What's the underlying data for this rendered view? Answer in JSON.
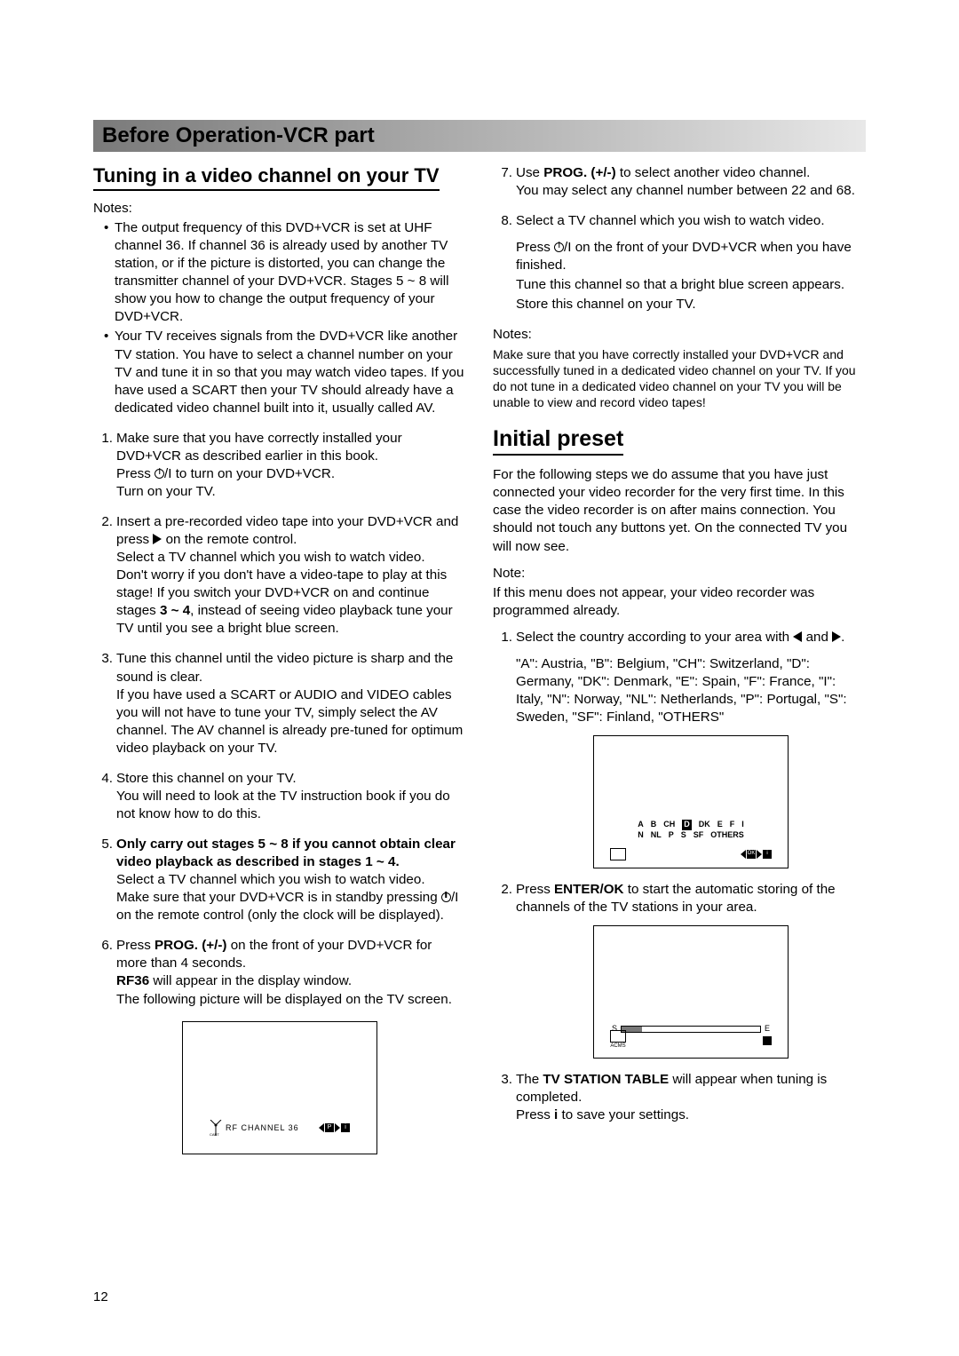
{
  "section_title": "Before Operation-VCR part",
  "heading_tuning": "Tuning in a video channel on your TV",
  "notes_label": "Notes:",
  "note_label": "Note:",
  "bullet1": "The output frequency of this DVD+VCR is set at UHF channel 36. If channel 36 is already used by another TV station, or if the picture is distorted, you can change the transmitter channel of your DVD+VCR. Stages 5 ~ 8 will show you how to change the output frequency of your DVD+VCR.",
  "bullet2": "Your TV receives signals from the DVD+VCR like another TV station. You have to select a channel number on your TV and tune it in so that you may watch video tapes. If you have used a SCART then your TV should already have a dedicated video channel built into it, usually called AV.",
  "step1a": "Make sure that you have correctly installed your DVD+VCR as described earlier in this book.",
  "step1b_pre": "Press ",
  "step1b_post": "/I to turn on your DVD+VCR.",
  "step1c": "Turn on your TV.",
  "step2a_pre": "Insert a pre-recorded video tape into your DVD+VCR and press ",
  "step2a_post": " on the remote control.",
  "step2b": "Select a TV channel which you wish to watch video.",
  "step2c_pre": "Don't worry if you don't have a video-tape to play at this stage! If you switch your DVD+VCR on and continue stages ",
  "step2c_bold": "3 ~ 4",
  "step2c_post": ", instead of seeing video playback tune your TV until you see a bright blue screen.",
  "step3a": "Tune this channel until the video picture is sharp and the sound is clear.",
  "step3b": "If you have used a SCART or AUDIO and VIDEO cables you will not have to tune your TV, simply select the AV channel. The AV channel is already pre-tuned for optimum video playback on your TV.",
  "step4a": "Store this channel on your TV.",
  "step4b": "You will need to look at the TV instruction book if you do not know how to do this.",
  "step5_bold": "Only carry out stages 5 ~ 8 if you cannot obtain clear video playback as described in stages 1 ~ 4.",
  "step5a": "Select a TV channel which you wish to watch video.",
  "step5b_pre": "Make sure that your DVD+VCR is in standby pressing ",
  "step5b_post": "/I on the remote control (only the clock will be displayed).",
  "step6a_pre": "Press ",
  "step6a_bold": "PROG. (+/-)",
  "step6a_post": " on the front of your DVD+VCR for more than 4 seconds.",
  "step6b_bold": "RF36",
  "step6b_post": " will appear in the display window.",
  "step6c": "The following picture will be displayed on the TV screen.",
  "step7a_pre": "Use ",
  "step7a_bold": "PROG. (+/-)",
  "step7a_post": " to select another video channel.",
  "step7b": "You may select any channel number between 22 and 68.",
  "step8a": "Select a TV channel which you wish to watch video.",
  "step8b_pre": "Press ",
  "step8b_post": "/I on the front of your DVD+VCR when you have finished.",
  "step8c": "Tune this channel so that a bright blue screen appears.",
  "step8d": "Store this channel on your TV.",
  "right_notes_body": "Make sure that you have correctly installed your DVD+VCR and successfully tuned in a dedicated video channel on your TV. If you do not tune in a dedicated video channel on your TV you will be unable to view and record video tapes!",
  "heading_initial": "Initial preset",
  "initial_intro": "For the following steps we do assume that you have just connected your video recorder for the very first time. In this case the video recorder is on after mains connection. You should not touch any buttons yet. On the connected TV you will now see.",
  "initial_note": "If this menu does not appear, your video recorder was programmed already.",
  "istep1a_pre": "Select the country according to your area with ",
  "istep1a_mid": " and ",
  "istep1a_post": ".",
  "istep1b": "\"A\": Austria, \"B\": Belgium, \"CH\": Switzerland, \"D\": Germany, \"DK\": Denmark, \"E\": Spain, \"F\": France, \"I\": Italy, \"N\": Norway, \"NL\": Netherlands, \"P\": Portugal, \"S\": Sweden, \"SF\": Finland, \"OTHERS\"",
  "istep2_pre": "Press ",
  "istep2_bold": "ENTER/OK",
  "istep2_post": " to start the automatic storing of the channels of the TV stations in your area.",
  "istep3_pre": "The ",
  "istep3_bold": "TV STATION TABLE",
  "istep3_post": " will appear when tuning is completed.",
  "istep3b_pre": "Press ",
  "istep3b_bold": "i",
  "istep3b_post": " to save your settings.",
  "fig_rf": {
    "text": "RF   CHANNEL    36",
    "cart": "CART"
  },
  "fig_country": {
    "row1": [
      "A",
      "B",
      "CH",
      "D",
      "DK",
      "E",
      "F",
      "I"
    ],
    "row2": [
      "N",
      "NL",
      "P",
      "S",
      "SF",
      "OTHERS"
    ],
    "selected": "D",
    "ok": "OK",
    "i": "i"
  },
  "fig_scan": {
    "s": "S",
    "e": "E",
    "acms": "ACMS"
  },
  "page_number": "12"
}
